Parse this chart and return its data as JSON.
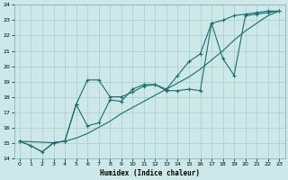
{
  "xlabel": "Humidex (Indice chaleur)",
  "bg_color": "#cce8e8",
  "grid_color": "#aacccc",
  "line_color": "#1a6e6e",
  "xlim": [
    -0.5,
    23.5
  ],
  "ylim": [
    14,
    24
  ],
  "xticks": [
    0,
    1,
    2,
    3,
    4,
    5,
    6,
    7,
    8,
    9,
    10,
    11,
    12,
    13,
    14,
    15,
    16,
    17,
    18,
    19,
    20,
    21,
    22,
    23
  ],
  "yticks": [
    14,
    15,
    16,
    17,
    18,
    19,
    20,
    21,
    22,
    23,
    24
  ],
  "line_smooth_x": [
    0,
    1,
    2,
    3,
    4,
    5,
    6,
    7,
    8,
    9,
    10,
    11,
    12,
    13,
    14,
    15,
    16,
    17,
    18,
    19,
    20,
    21,
    22,
    23
  ],
  "line_smooth_y": [
    15.1,
    14.8,
    14.4,
    15.0,
    15.1,
    15.3,
    15.6,
    16.0,
    16.4,
    16.9,
    17.3,
    17.7,
    18.1,
    18.5,
    18.9,
    19.3,
    19.8,
    20.4,
    21.0,
    21.7,
    22.3,
    22.8,
    23.3,
    23.6
  ],
  "line_mid_x": [
    0,
    1,
    2,
    3,
    4,
    5,
    6,
    7,
    8,
    9,
    10,
    11,
    12,
    13,
    14,
    15,
    16,
    17,
    18,
    19,
    20,
    21,
    22,
    23
  ],
  "line_mid_y": [
    15.1,
    14.8,
    14.4,
    15.0,
    15.1,
    17.5,
    16.1,
    16.3,
    17.8,
    17.7,
    18.5,
    18.8,
    18.8,
    18.5,
    19.4,
    20.3,
    20.8,
    22.8,
    23.0,
    23.3,
    23.4,
    23.5,
    23.6,
    23.6
  ],
  "line_jagged_x": [
    0,
    3,
    4,
    5,
    6,
    7,
    8,
    9,
    10,
    11,
    12,
    13,
    14,
    15,
    16,
    17,
    18,
    19,
    20,
    21,
    22,
    23
  ],
  "line_jagged_y": [
    15.1,
    15.0,
    15.1,
    17.5,
    19.1,
    19.1,
    18.0,
    18.0,
    18.3,
    18.7,
    18.8,
    18.4,
    18.4,
    18.5,
    18.4,
    22.8,
    20.5,
    19.4,
    23.3,
    23.4,
    23.5,
    23.6
  ]
}
